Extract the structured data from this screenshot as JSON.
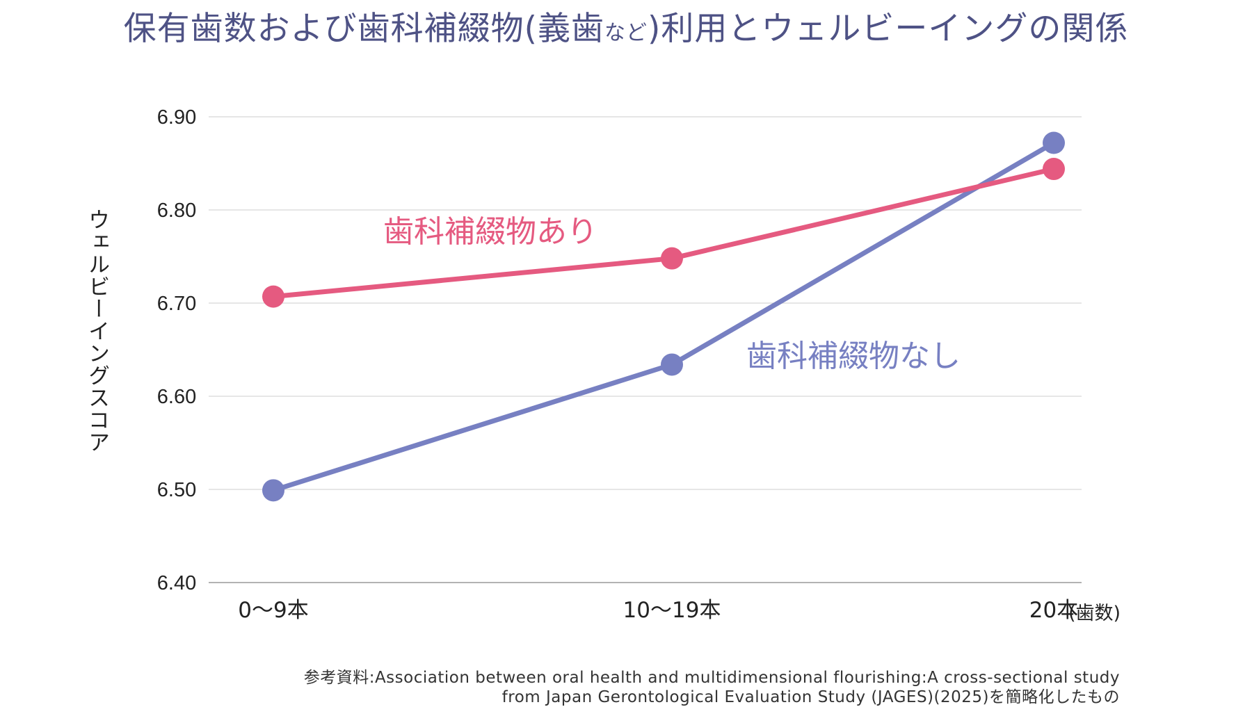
{
  "chart_data": {
    "type": "line",
    "title": "保有歯数および歯科補綴物(義歯など)利用とウェルビーイングの関係",
    "title_parts": [
      "保有歯数および歯科補綴物(義歯",
      "など",
      ")利用とウェルビーイングの関係"
    ],
    "ylabel": "ウェルビーイングスコア",
    "xunit": "(歯数)",
    "categories": [
      "0〜9本",
      "10〜19本",
      "20本"
    ],
    "ylim": [
      6.4,
      6.9
    ],
    "yticks": [
      "6.40",
      "6.50",
      "6.60",
      "6.70",
      "6.80",
      "6.90"
    ],
    "grid": true,
    "series": [
      {
        "name": "歯科補綴物あり",
        "values": [
          6.707,
          6.748,
          6.844
        ],
        "color": "#e55a80"
      },
      {
        "name": "歯科補綴物なし",
        "values": [
          6.499,
          6.634,
          6.872
        ],
        "color": "#7780c2"
      }
    ],
    "source": [
      "参考資料:Association between oral health and multidimensional flourishing:A cross-sectional study",
      "from Japan Gerontological Evaluation Study (JAGES)(2025)を簡略化したもの"
    ]
  }
}
